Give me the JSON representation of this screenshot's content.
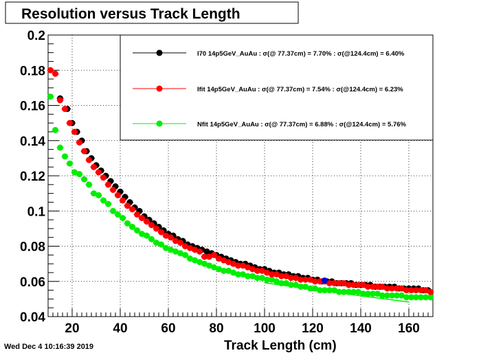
{
  "timestamp": "Wed Dec  4 10:16:39 2019",
  "chart_data": {
    "type": "scatter",
    "title": "Resolution versus Track Length",
    "xlabel": "Track Length (cm)",
    "ylabel": "",
    "xlim": [
      10,
      170
    ],
    "ylim": [
      0.04,
      0.2
    ],
    "x_ticks": [
      20,
      40,
      60,
      80,
      100,
      120,
      140,
      160
    ],
    "y_ticks": [
      0.04,
      0.06,
      0.08,
      0.1,
      0.12,
      0.14,
      0.16,
      0.18,
      0.2
    ],
    "x_tick_labels": [
      "20",
      "40",
      "60",
      "80",
      "100",
      "120",
      "140",
      "160"
    ],
    "y_tick_labels": [
      "0.04",
      "0.06",
      "0.08",
      "0.1",
      "0.12",
      "0.14",
      "0.16",
      "0.18",
      "0.2"
    ],
    "grid": true,
    "legend_position": "top-right",
    "series": [
      {
        "name": "I70  14p5GeV_AuAu : σ(@ 77.37cm) =  7.70% : σ(@124.4cm) =  6.40%",
        "color": "#000000",
        "x": [
          15,
          18,
          20,
          22,
          24,
          26,
          28,
          30,
          32,
          34,
          36,
          38,
          40,
          42,
          44,
          46,
          48,
          50,
          52,
          54,
          56,
          58,
          60,
          62,
          64,
          66,
          68,
          70,
          72,
          74,
          76,
          78,
          80,
          82,
          84,
          86,
          88,
          90,
          92,
          94,
          96,
          98,
          100,
          102,
          104,
          106,
          108,
          110,
          112,
          114,
          116,
          118,
          120,
          122,
          124,
          126,
          128,
          130,
          132,
          134,
          136,
          138,
          140,
          142,
          144,
          146,
          148,
          150,
          152,
          154,
          156,
          158,
          160,
          162,
          164,
          166,
          168
        ],
        "y": [
          0.164,
          0.158,
          0.15,
          0.145,
          0.14,
          0.134,
          0.13,
          0.126,
          0.123,
          0.12,
          0.117,
          0.114,
          0.111,
          0.108,
          0.105,
          0.102,
          0.1,
          0.097,
          0.095,
          0.093,
          0.091,
          0.089,
          0.087,
          0.086,
          0.084,
          0.083,
          0.081,
          0.08,
          0.079,
          0.078,
          0.077,
          0.076,
          0.075,
          0.074,
          0.073,
          0.072,
          0.071,
          0.07,
          0.07,
          0.069,
          0.068,
          0.067,
          0.067,
          0.066,
          0.065,
          0.065,
          0.064,
          0.064,
          0.063,
          0.063,
          0.062,
          0.062,
          0.061,
          0.061,
          0.06,
          0.06,
          0.06,
          0.059,
          0.059,
          0.059,
          0.059,
          0.058,
          0.058,
          0.058,
          0.058,
          0.057,
          0.057,
          0.057,
          0.057,
          0.057,
          0.056,
          0.056,
          0.056,
          0.056,
          0.056,
          0.055,
          0.055
        ]
      },
      {
        "name": "Ifit 14p5GeV_AuAu : σ(@ 77.37cm) =  7.54% : σ(@124.4cm) =  6.23%",
        "color": "#ff0000",
        "x": [
          11,
          13,
          15,
          17,
          19,
          21,
          23,
          25,
          27,
          29,
          31,
          33,
          35,
          37,
          39,
          41,
          43,
          45,
          47,
          49,
          51,
          53,
          55,
          57,
          59,
          61,
          63,
          65,
          67,
          69,
          71,
          73,
          75,
          77,
          79,
          81,
          83,
          85,
          87,
          89,
          91,
          93,
          95,
          97,
          99,
          101,
          103,
          105,
          107,
          109,
          111,
          113,
          115,
          117,
          119,
          121,
          123,
          125,
          127,
          129,
          131,
          133,
          135,
          137,
          139,
          141,
          143,
          145,
          147,
          149,
          151,
          153,
          155,
          157,
          159,
          161,
          163,
          165,
          167,
          169
        ],
        "y": [
          0.18,
          0.178,
          0.163,
          0.158,
          0.15,
          0.145,
          0.139,
          0.134,
          0.129,
          0.125,
          0.122,
          0.119,
          0.115,
          0.112,
          0.109,
          0.106,
          0.103,
          0.101,
          0.098,
          0.096,
          0.094,
          0.092,
          0.09,
          0.088,
          0.086,
          0.085,
          0.083,
          0.082,
          0.08,
          0.079,
          0.078,
          0.077,
          0.074,
          0.074,
          0.075,
          0.073,
          0.072,
          0.071,
          0.07,
          0.069,
          0.069,
          0.068,
          0.067,
          0.066,
          0.066,
          0.065,
          0.064,
          0.064,
          0.063,
          0.063,
          0.062,
          0.062,
          0.061,
          0.061,
          0.061,
          0.06,
          0.06,
          0.06,
          0.059,
          0.059,
          0.059,
          0.059,
          0.058,
          0.058,
          0.058,
          0.058,
          0.057,
          0.057,
          0.057,
          0.057,
          0.056,
          0.056,
          0.056,
          0.056,
          0.055,
          0.055,
          0.055,
          0.055,
          0.055,
          0.054
        ]
      },
      {
        "name": "Nfit 14p5GeV_AuAu : σ(@ 77.37cm) =  6.88% : σ(@124.4cm) =  5.76%",
        "color": "#00ee00",
        "x": [
          11,
          13,
          15,
          17,
          19,
          21,
          23,
          25,
          27,
          29,
          31,
          33,
          35,
          37,
          39,
          41,
          43,
          45,
          47,
          49,
          51,
          53,
          55,
          57,
          59,
          61,
          63,
          65,
          67,
          69,
          71,
          73,
          75,
          77,
          79,
          81,
          83,
          85,
          87,
          89,
          91,
          93,
          95,
          97,
          99,
          101,
          103,
          105,
          107,
          109,
          111,
          113,
          115,
          117,
          119,
          121,
          123,
          125,
          127,
          129,
          131,
          133,
          135,
          137,
          139,
          141,
          143,
          145,
          147,
          149,
          151,
          153,
          155,
          157,
          159,
          161,
          163,
          165,
          167,
          169
        ],
        "y": [
          0.165,
          0.146,
          0.136,
          0.131,
          0.127,
          0.122,
          0.121,
          0.118,
          0.115,
          0.11,
          0.109,
          0.106,
          0.104,
          0.1,
          0.098,
          0.096,
          0.093,
          0.091,
          0.089,
          0.087,
          0.086,
          0.084,
          0.082,
          0.081,
          0.079,
          0.078,
          0.077,
          0.076,
          0.075,
          0.073,
          0.072,
          0.071,
          0.07,
          0.069,
          0.068,
          0.067,
          0.066,
          0.066,
          0.065,
          0.064,
          0.064,
          0.063,
          0.063,
          0.062,
          0.062,
          0.061,
          0.061,
          0.06,
          0.059,
          0.059,
          0.058,
          0.058,
          0.057,
          0.057,
          0.056,
          0.056,
          0.055,
          0.055,
          0.055,
          0.055,
          0.054,
          0.054,
          0.054,
          0.054,
          0.054,
          0.053,
          0.053,
          0.053,
          0.053,
          0.052,
          0.052,
          0.052,
          0.052,
          0.052,
          0.051,
          0.051,
          0.051,
          0.051,
          0.051,
          0.051
        ]
      },
      {
        "name": "",
        "color": "#00ee00",
        "style": "line",
        "x": [
          100,
          120,
          140,
          160
        ],
        "y": [
          0.0592,
          0.0555,
          0.0518,
          0.0483
        ]
      },
      {
        "name": "",
        "color": "#0000cc",
        "x": [
          125
        ],
        "y": [
          0.0605
        ]
      }
    ]
  }
}
